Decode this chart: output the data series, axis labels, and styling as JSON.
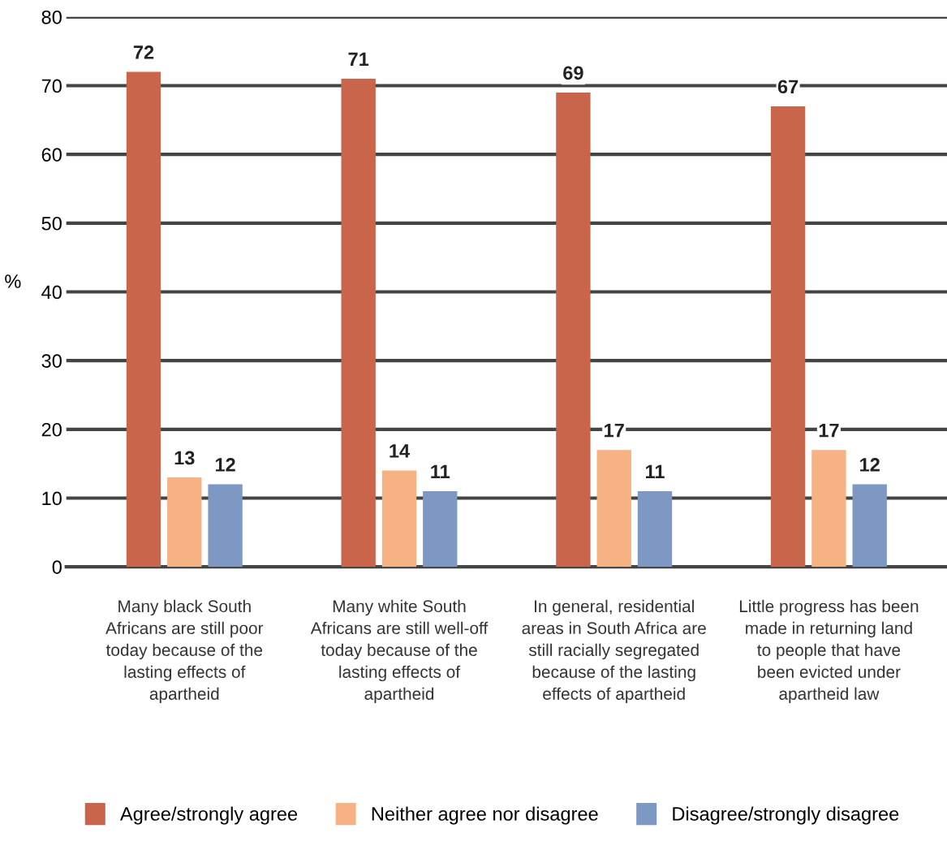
{
  "chart_data": {
    "type": "bar",
    "ylabel": "%",
    "categories": [
      "Many black South Africans are still poor today because of the lasting effects of apartheid",
      "Many white South Africans are still well-off today because of the lasting effects of apartheid",
      "In general, residential areas in South Africa are still racially segregated because of the lasting effects of apartheid",
      "Little progress has been made in returning land to people that have been evicted under apartheid law"
    ],
    "series": [
      {
        "name": "Agree/strongly agree",
        "color": "#c8654b",
        "values": [
          72,
          71,
          69,
          67
        ]
      },
      {
        "name": "Neither agree nor disagree",
        "color": "#f6b283",
        "values": [
          13,
          14,
          17,
          17
        ]
      },
      {
        "name": "Disagree/strongly disagree",
        "color": "#7d98c3",
        "values": [
          12,
          11,
          11,
          12
        ]
      }
    ],
    "ylim": [
      0,
      80
    ],
    "yticks": [
      0,
      10,
      20,
      30,
      40,
      50,
      60,
      70,
      80
    ],
    "grid": "y",
    "legend": "bottom",
    "data_labels": true
  }
}
